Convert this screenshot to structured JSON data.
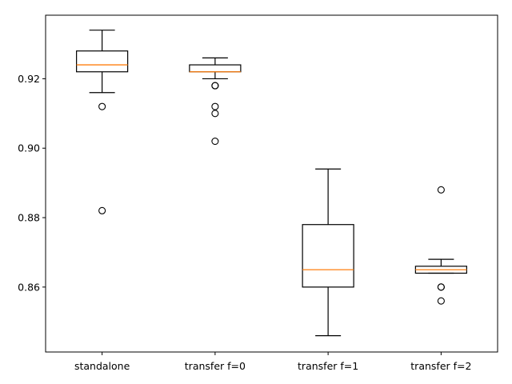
{
  "chart_data": {
    "type": "box",
    "title": "",
    "xlabel": "",
    "ylabel": "",
    "categories": [
      "standalone",
      "transfer f=0",
      "transfer f=1",
      "transfer f=2"
    ],
    "ylim": [
      0.8413,
      0.9383
    ],
    "yticks": [
      0.86,
      0.88,
      0.9,
      0.92
    ],
    "ytick_labels": [
      "0.86",
      "0.88",
      "0.90",
      "0.92"
    ],
    "grid": false,
    "colors": {
      "box": "#000000",
      "median": "#ff7f0e",
      "flier": "#000000"
    },
    "boxes": [
      {
        "label": "standalone",
        "whisker_low": 0.916,
        "q1": 0.922,
        "median": 0.924,
        "q3": 0.928,
        "whisker_high": 0.934,
        "fliers": [
          0.912,
          0.882
        ]
      },
      {
        "label": "transfer f=0",
        "whisker_low": 0.92,
        "q1": 0.922,
        "median": 0.922,
        "q3": 0.924,
        "whisker_high": 0.926,
        "fliers": [
          0.918,
          0.918,
          0.912,
          0.91,
          0.902
        ]
      },
      {
        "label": "transfer f=1",
        "whisker_low": 0.846,
        "q1": 0.86,
        "median": 0.865,
        "q3": 0.878,
        "whisker_high": 0.894,
        "fliers": []
      },
      {
        "label": "transfer f=2",
        "whisker_low": 0.864,
        "q1": 0.864,
        "median": 0.865,
        "q3": 0.866,
        "whisker_high": 0.868,
        "fliers": [
          0.888,
          0.86,
          0.86,
          0.856
        ]
      }
    ]
  }
}
